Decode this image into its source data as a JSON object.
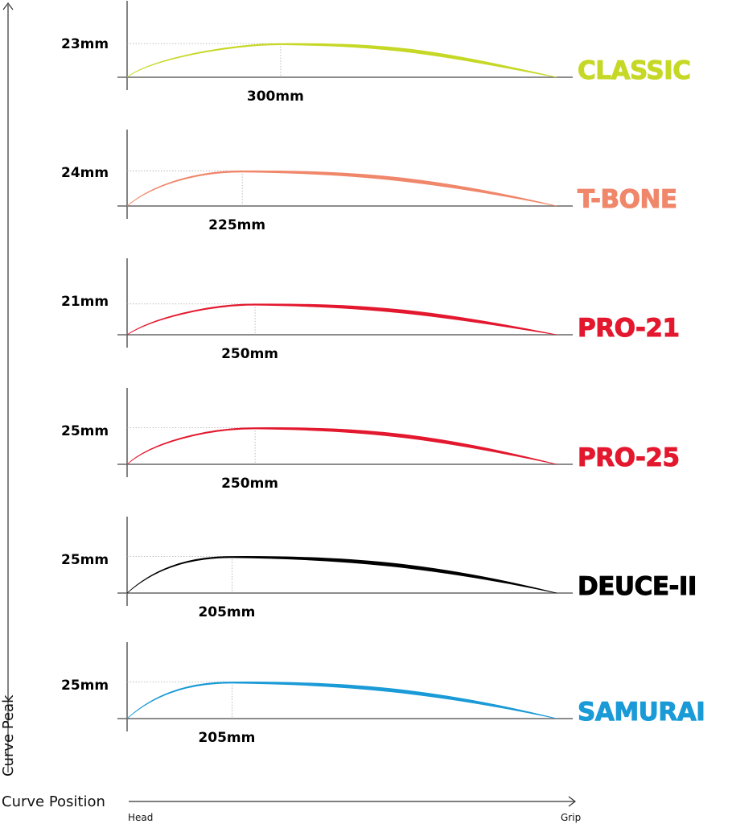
{
  "axes": {
    "y_title": "Curve Peak",
    "x_title": "Curve Position",
    "x_start_label": "Head",
    "x_end_label": "Grip"
  },
  "chart_data": {
    "type": "line",
    "title": "",
    "xlabel": "Curve Position",
    "ylabel": "Curve Peak",
    "x_range_labels": [
      "Head",
      "Grip"
    ],
    "panels": [
      {
        "name": "CLASSIC",
        "color": "#c6d826",
        "peak_mm": 23,
        "peak_pos_mm": 300,
        "peak_label": "23mm",
        "pos_label": "300mm"
      },
      {
        "name": "T-BONE",
        "color": "#f0866a",
        "peak_mm": 24,
        "peak_pos_mm": 225,
        "peak_label": "24mm",
        "pos_label": "225mm"
      },
      {
        "name": "PRO-21",
        "color": "#e3182e",
        "peak_mm": 21,
        "peak_pos_mm": 250,
        "peak_label": "21mm",
        "pos_label": "250mm"
      },
      {
        "name": "PRO-25",
        "color": "#e3182e",
        "peak_mm": 25,
        "peak_pos_mm": 250,
        "peak_label": "25mm",
        "pos_label": "250mm"
      },
      {
        "name": "DEUCE-II",
        "color": "#000000",
        "peak_mm": 25,
        "peak_pos_mm": 205,
        "peak_label": "25mm",
        "pos_label": "205mm"
      },
      {
        "name": "SAMURAI",
        "color": "#1a9ad6",
        "peak_mm": 25,
        "peak_pos_mm": 205,
        "peak_label": "25mm",
        "pos_label": "205mm"
      }
    ]
  }
}
